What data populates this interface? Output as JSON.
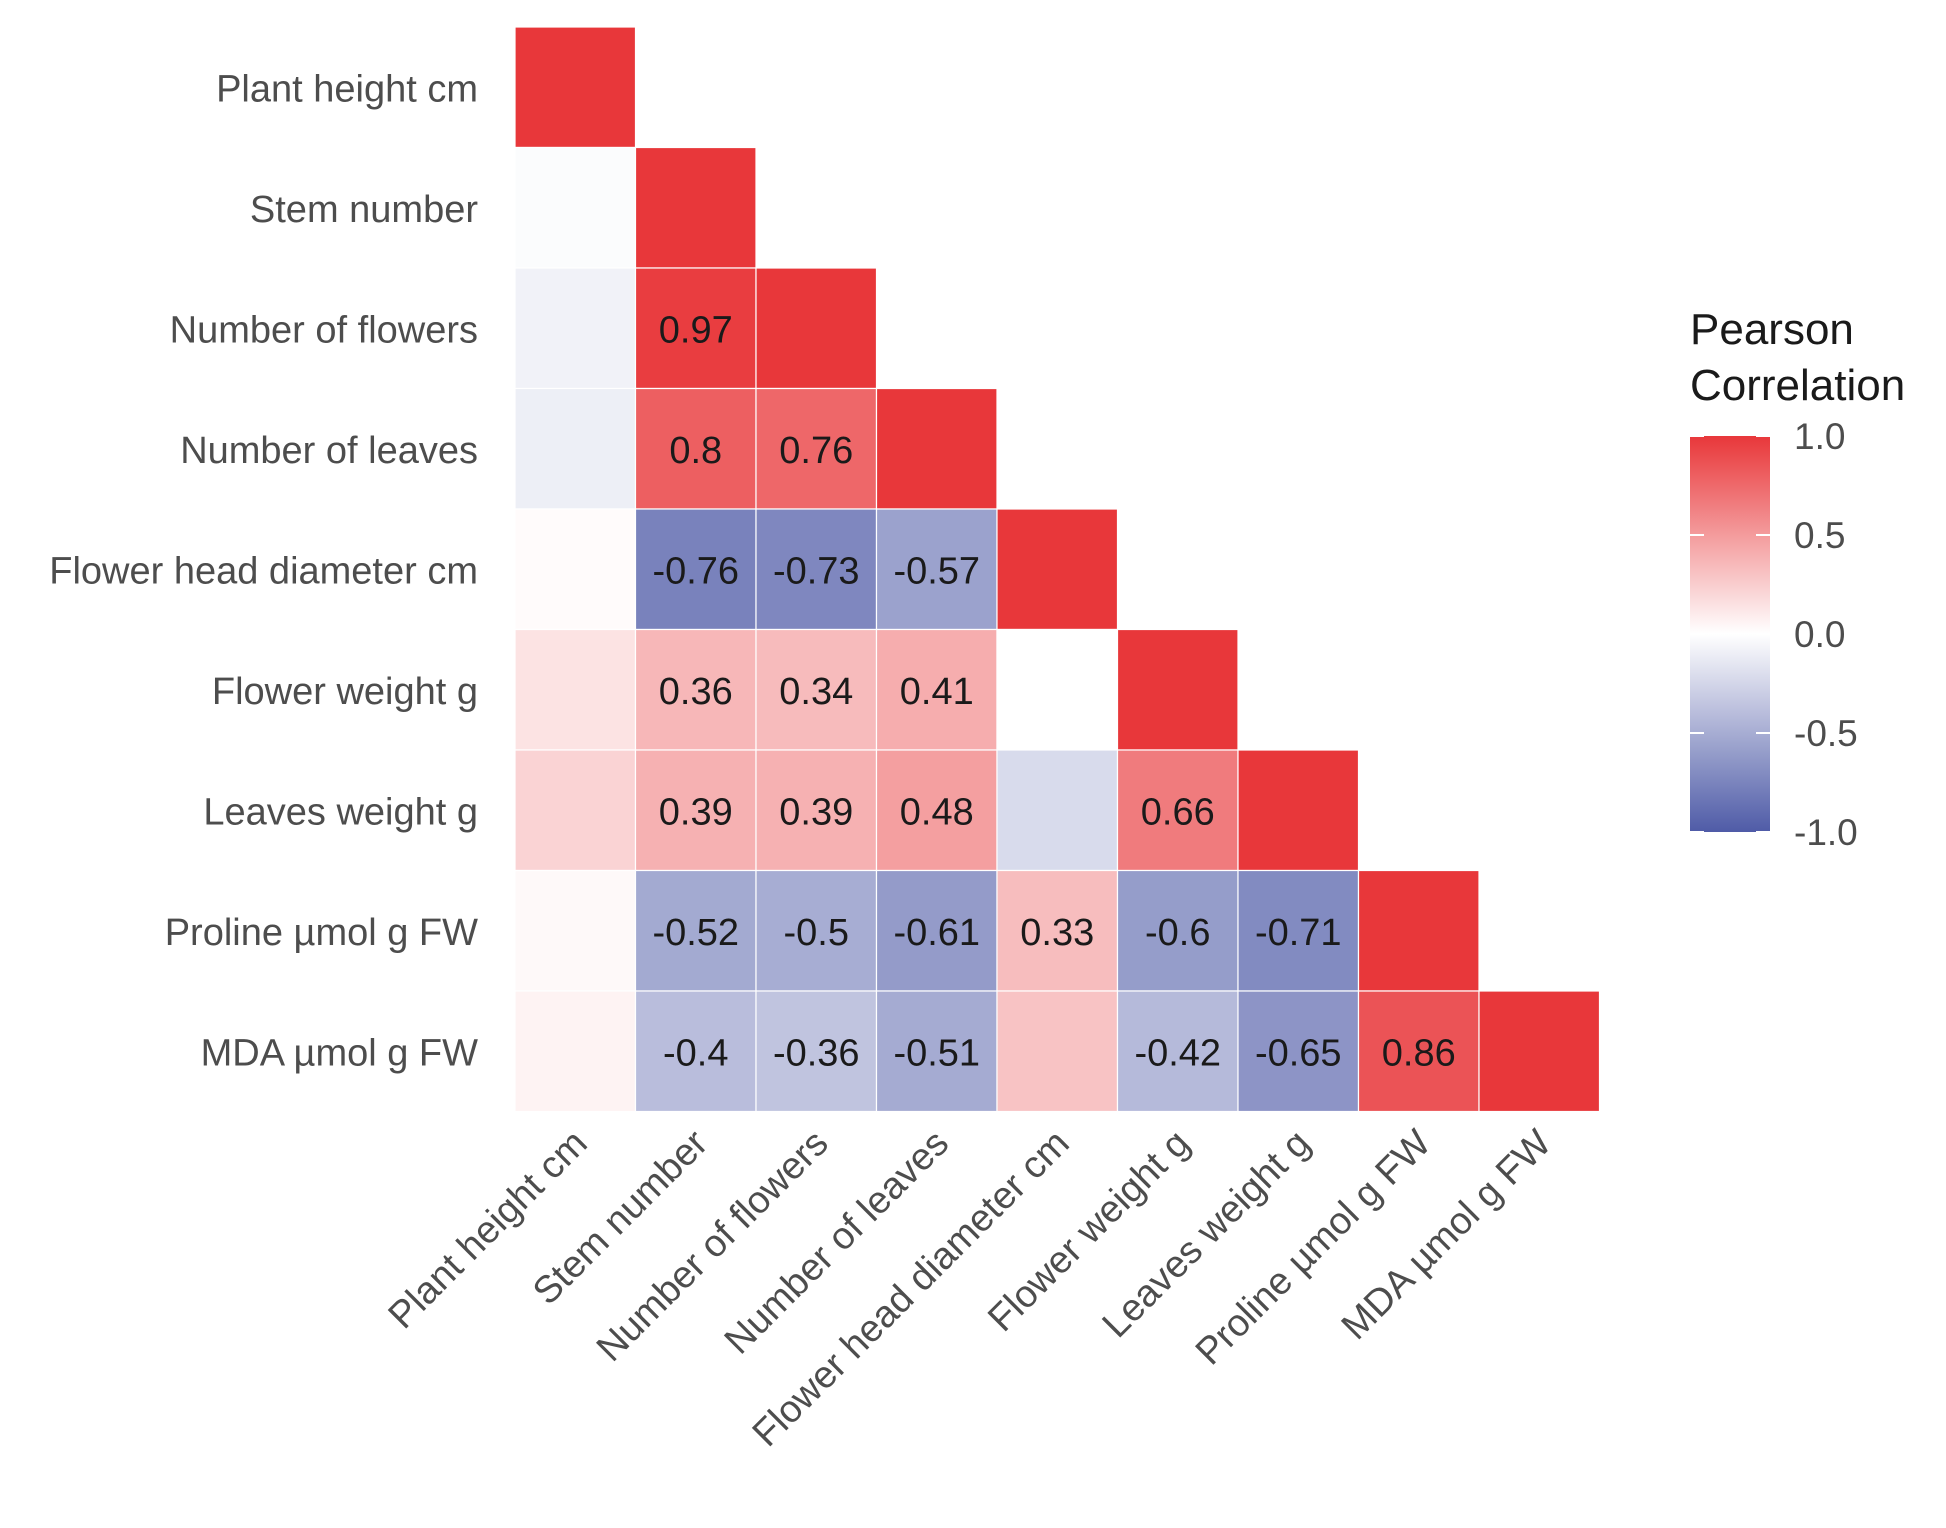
{
  "chart_data": {
    "type": "heatmap",
    "title": "",
    "variables": [
      "Plant height cm",
      "Stem number",
      "Number of flowers",
      "Number of leaves",
      "Flower head diameter cm",
      "Flower weight g",
      "Leaves weight g",
      "Proline µmol g FW",
      "MDA µmol g FW"
    ],
    "matrix": [
      [
        1.0,
        null,
        null,
        null,
        null,
        null,
        null,
        null,
        null
      ],
      [
        -0.02,
        1.0,
        null,
        null,
        null,
        null,
        null,
        null,
        null
      ],
      [
        -0.08,
        0.97,
        1.0,
        null,
        null,
        null,
        null,
        null,
        null
      ],
      [
        -0.1,
        0.8,
        0.76,
        1.0,
        null,
        null,
        null,
        null,
        null
      ],
      [
        0.02,
        -0.76,
        -0.73,
        -0.57,
        1.0,
        null,
        null,
        null,
        null
      ],
      [
        0.14,
        0.36,
        0.34,
        0.41,
        0.0,
        1.0,
        null,
        null,
        null
      ],
      [
        0.22,
        0.39,
        0.39,
        0.48,
        -0.22,
        0.66,
        1.0,
        null,
        null
      ],
      [
        0.03,
        -0.52,
        -0.5,
        -0.61,
        0.33,
        -0.6,
        -0.71,
        1.0,
        null
      ],
      [
        0.06,
        -0.4,
        -0.36,
        -0.51,
        0.3,
        -0.42,
        -0.65,
        0.86,
        1.0
      ]
    ],
    "cell_labels": [
      [
        null,
        null,
        null,
        null,
        null,
        null,
        null,
        null,
        null
      ],
      [
        null,
        null,
        null,
        null,
        null,
        null,
        null,
        null,
        null
      ],
      [
        null,
        "0.97",
        null,
        null,
        null,
        null,
        null,
        null,
        null
      ],
      [
        null,
        "0.8",
        "0.76",
        null,
        null,
        null,
        null,
        null,
        null
      ],
      [
        null,
        "-0.76",
        "-0.73",
        "-0.57",
        null,
        null,
        null,
        null,
        null
      ],
      [
        null,
        "0.36",
        "0.34",
        "0.41",
        null,
        null,
        null,
        null,
        null
      ],
      [
        null,
        "0.39",
        "0.39",
        "0.48",
        null,
        "0.66",
        null,
        null,
        null
      ],
      [
        null,
        "-0.52",
        "-0.5",
        "-0.61",
        "0.33",
        "-0.6",
        "-0.71",
        null,
        null
      ],
      [
        null,
        "-0.4",
        "-0.36",
        "-0.51",
        null,
        "-0.42",
        "-0.65",
        "0.86",
        null
      ]
    ],
    "legend": {
      "title_lines": [
        "Pearson",
        "Correlation"
      ],
      "range": [
        -1.0,
        1.0
      ],
      "ticks": [
        1.0,
        0.5,
        0.0,
        -0.5,
        -1.0
      ],
      "tick_labels": [
        "1.0",
        "0.5",
        "0.0",
        "-0.5",
        "-1.0"
      ],
      "position": "right"
    },
    "color_scale": {
      "low": "#4F5BA7",
      "mid": "#FFFFFF",
      "high": "#E8373A"
    },
    "xlabel": "",
    "ylabel": ""
  }
}
